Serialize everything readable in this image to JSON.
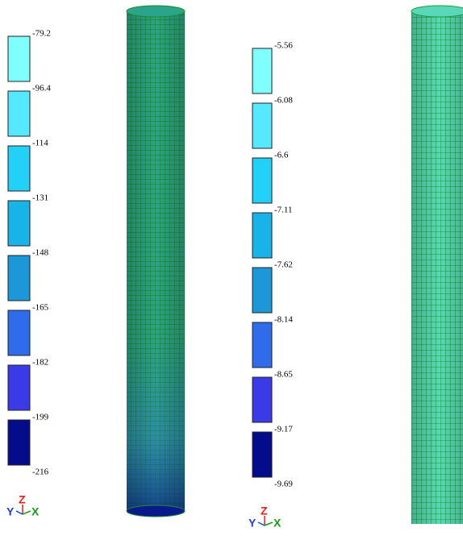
{
  "legends": [
    {
      "labels": [
        "-79.2",
        "-96.4",
        "-114",
        "-131",
        "-148",
        "-165",
        "-182",
        "-199",
        "-216"
      ],
      "colors": [
        "#80ffff",
        "#55e8ff",
        "#22d0f8",
        "#18b4e8",
        "#1c98d8",
        "#2f6cec",
        "#3a3ae6",
        "#040c8c"
      ]
    },
    {
      "labels": [
        "-5.56",
        "-6.08",
        "-6.6",
        "-7.11",
        "-7.62",
        "-8.14",
        "-8.65",
        "-9.17",
        "-9.69"
      ],
      "colors": [
        "#80ffff",
        "#55e8ff",
        "#22d0f8",
        "#18b4e8",
        "#1c98d8",
        "#2f6cec",
        "#3a3ae6",
        "#040c8c"
      ]
    }
  ],
  "triads": [
    {
      "y": "Y",
      "z": "Z",
      "x": "X"
    },
    {
      "y": "Y",
      "z": "Z",
      "x": "X"
    }
  ]
}
